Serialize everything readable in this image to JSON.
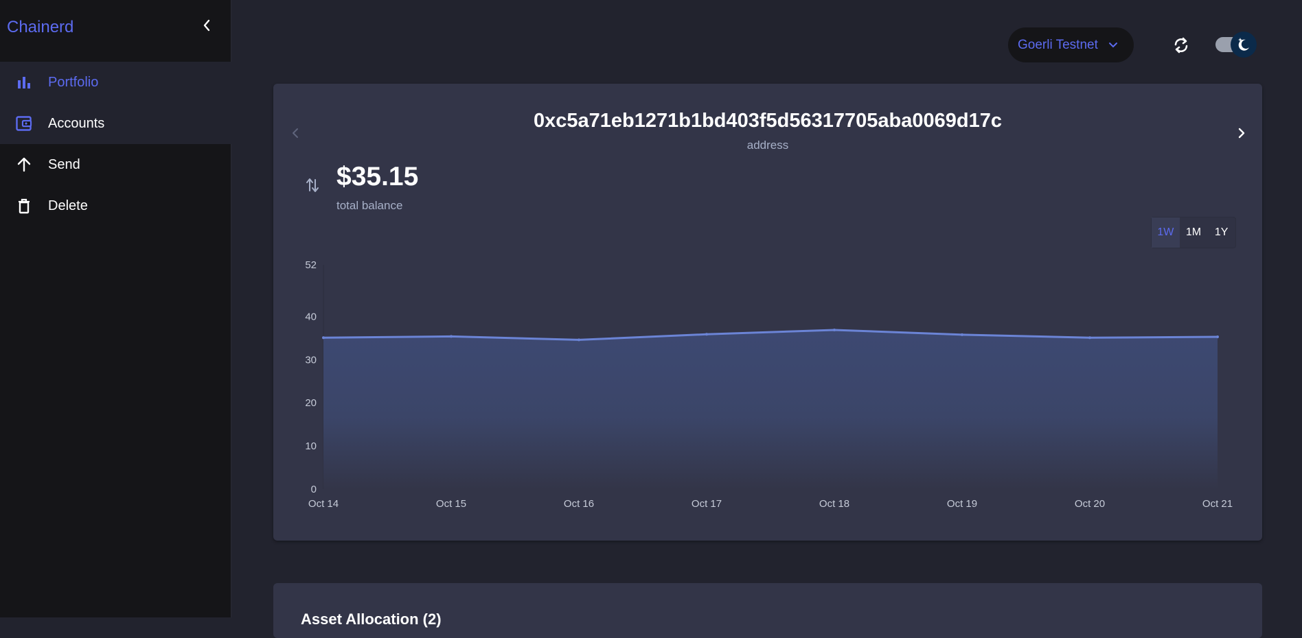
{
  "app": {
    "brand": "Chainerd"
  },
  "sidebar": {
    "items": [
      {
        "label": "Portfolio",
        "icon": "bar-chart-icon",
        "active": true
      },
      {
        "label": "Accounts",
        "icon": "wallet-icon",
        "active": false
      },
      {
        "label": "Send",
        "icon": "arrow-up-icon",
        "active": false
      },
      {
        "label": "Delete",
        "icon": "trash-icon",
        "active": false
      }
    ]
  },
  "header": {
    "network": "Goerli Testnet"
  },
  "account": {
    "address": "0xc5a71eb1271b1bd403f5d56317705aba0069d17c",
    "address_caption": "address",
    "balance": "$35.15",
    "balance_caption": "total balance"
  },
  "range": {
    "options": [
      "1W",
      "1M",
      "1Y"
    ],
    "selected": "1W"
  },
  "next_section": {
    "title": "Asset Allocation (2)"
  },
  "colors": {
    "accent": "#5c6bf0",
    "line": "#6b84d6",
    "card": "#333548",
    "sidebar": "#151518",
    "background": "#22232e"
  },
  "chart_data": {
    "type": "area",
    "categories": [
      "Oct 14",
      "Oct 15",
      "Oct 16",
      "Oct 17",
      "Oct 18",
      "Oct 19",
      "Oct 20",
      "Oct 21"
    ],
    "values": [
      35.1,
      35.4,
      34.6,
      35.9,
      36.9,
      35.8,
      35.1,
      35.3
    ],
    "yticks": [
      0,
      10,
      20,
      30,
      40,
      52
    ],
    "ylim": [
      0,
      52
    ],
    "grid": false,
    "title": "",
    "xlabel": "",
    "ylabel": ""
  }
}
